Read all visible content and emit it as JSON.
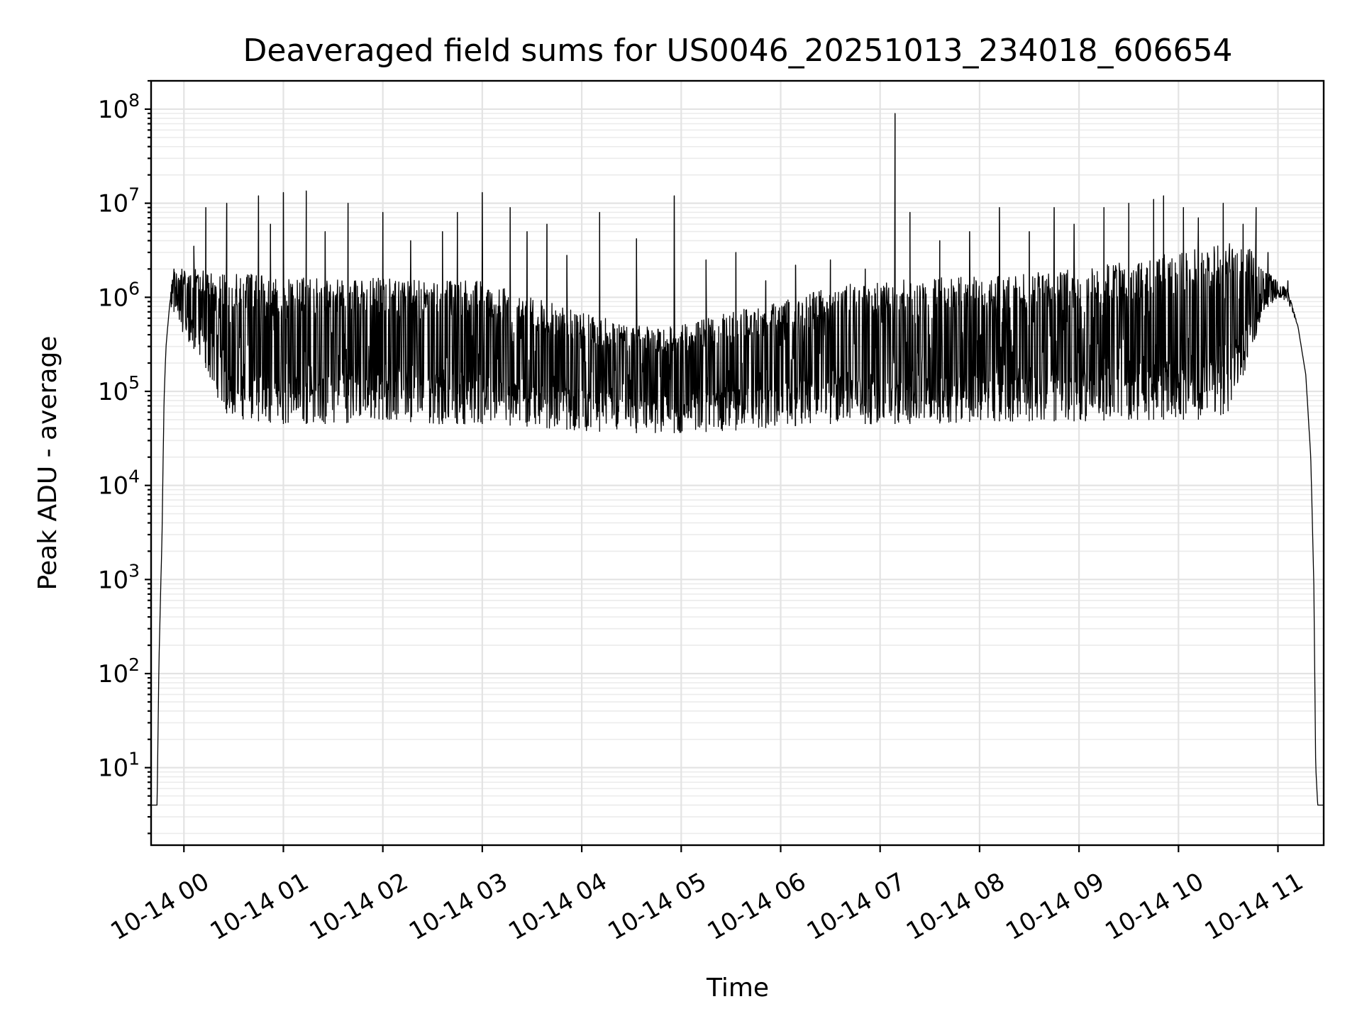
{
  "chart_data": {
    "type": "line",
    "title": "Deaveraged field sums for US0046_20251013_234018_606654",
    "xlabel": "Time",
    "ylabel": "Peak ADU - average",
    "yscale": "log",
    "ylim": [
      1.5,
      200000000
    ],
    "xlim_hours": [
      -0.33,
      11.46
    ],
    "grid": true,
    "x_ticks": [
      "10-14 00",
      "10-14 01",
      "10-14 02",
      "10-14 03",
      "10-14 04",
      "10-14 05",
      "10-14 06",
      "10-14 07",
      "10-14 08",
      "10-14 09",
      "10-14 10",
      "10-14 11"
    ],
    "y_ticks": [
      {
        "base": "10",
        "exp": "1"
      },
      {
        "base": "10",
        "exp": "2"
      },
      {
        "base": "10",
        "exp": "3"
      },
      {
        "base": "10",
        "exp": "4"
      },
      {
        "base": "10",
        "exp": "5"
      },
      {
        "base": "10",
        "exp": "6"
      },
      {
        "base": "10",
        "exp": "7"
      },
      {
        "base": "10",
        "exp": "8"
      }
    ],
    "series": [
      {
        "name": "field sums",
        "color": "#000000",
        "envelope": {
          "hours": [
            -0.33,
            -0.27,
            -0.25,
            -0.22,
            -0.2,
            -0.18,
            -0.15,
            -0.12,
            -0.1,
            0.0,
            0.2,
            0.4,
            0.6,
            1.0,
            1.5,
            2.0,
            2.5,
            3.0,
            3.5,
            4.0,
            4.5,
            5.0,
            5.5,
            6.0,
            6.5,
            7.0,
            7.5,
            8.0,
            8.5,
            9.0,
            9.5,
            10.0,
            10.3,
            10.5,
            10.7,
            10.85,
            11.0,
            11.1,
            11.2,
            11.28,
            11.33,
            11.36,
            11.38,
            11.4,
            11.46
          ],
          "baseline": [
            4,
            4,
            150,
            3000,
            80000,
            300000,
            700000,
            1000000,
            900000,
            700000,
            800000,
            200000,
            150000,
            200000,
            150000,
            200000,
            150000,
            100000,
            80000,
            50000,
            45000,
            45000,
            45000,
            50000,
            55000,
            60000,
            65000,
            70000,
            70000,
            75000,
            75000,
            80000,
            90000,
            120000,
            250000,
            700000,
            1000000,
            900000,
            500000,
            150000,
            20000,
            1000,
            10,
            4,
            4
          ],
          "burst_low": [
            4,
            4,
            150,
            3000,
            80000,
            300000,
            700000,
            800000,
            700000,
            400000,
            200000,
            60000,
            50000,
            45000,
            45000,
            50000,
            45000,
            45000,
            42000,
            38000,
            36000,
            36000,
            38000,
            42000,
            45000,
            45000,
            45000,
            48000,
            48000,
            48000,
            50000,
            50000,
            50000,
            60000,
            200000,
            700000,
            1000000,
            900000,
            500000,
            150000,
            20000,
            1000,
            10,
            4,
            4
          ],
          "burst_high": [
            4,
            4,
            150,
            3000,
            80000,
            300000,
            700000,
            1500000,
            2000000,
            2000000,
            2000000,
            1800000,
            1800000,
            1600000,
            1600000,
            1600000,
            1500000,
            1500000,
            1000000,
            700000,
            500000,
            500000,
            700000,
            900000,
            1300000,
            1500000,
            1600000,
            1700000,
            1800000,
            2000000,
            2500000,
            3000000,
            3500000,
            4000000,
            3500000,
            2000000,
            1500000,
            1200000,
            500000,
            150000,
            20000,
            1000,
            10,
            4,
            4
          ]
        },
        "spikes": [
          {
            "hour": -0.1,
            "value": 2000000
          },
          {
            "hour": 0.1,
            "value": 3500000
          },
          {
            "hour": 0.22,
            "value": 9000000
          },
          {
            "hour": 0.43,
            "value": 10000000
          },
          {
            "hour": 0.75,
            "value": 12000000
          },
          {
            "hour": 0.87,
            "value": 6000000
          },
          {
            "hour": 1.0,
            "value": 13000000
          },
          {
            "hour": 1.23,
            "value": 13500000
          },
          {
            "hour": 1.42,
            "value": 5000000
          },
          {
            "hour": 1.65,
            "value": 10000000
          },
          {
            "hour": 2.0,
            "value": 8000000
          },
          {
            "hour": 2.28,
            "value": 4000000
          },
          {
            "hour": 2.6,
            "value": 5000000
          },
          {
            "hour": 2.75,
            "value": 8000000
          },
          {
            "hour": 3.0,
            "value": 13000000
          },
          {
            "hour": 3.28,
            "value": 9000000
          },
          {
            "hour": 3.45,
            "value": 5000000
          },
          {
            "hour": 3.65,
            "value": 6000000
          },
          {
            "hour": 3.85,
            "value": 2800000
          },
          {
            "hour": 4.18,
            "value": 8000000
          },
          {
            "hour": 4.55,
            "value": 4200000
          },
          {
            "hour": 4.93,
            "value": 12000000
          },
          {
            "hour": 5.25,
            "value": 2500000
          },
          {
            "hour": 5.55,
            "value": 3000000
          },
          {
            "hour": 5.85,
            "value": 1500000
          },
          {
            "hour": 6.15,
            "value": 2200000
          },
          {
            "hour": 6.5,
            "value": 2500000
          },
          {
            "hour": 6.85,
            "value": 2000000
          },
          {
            "hour": 7.15,
            "value": 90000000
          },
          {
            "hour": 7.3,
            "value": 8000000
          },
          {
            "hour": 7.6,
            "value": 4000000
          },
          {
            "hour": 7.9,
            "value": 5000000
          },
          {
            "hour": 8.2,
            "value": 9000000
          },
          {
            "hour": 8.5,
            "value": 5000000
          },
          {
            "hour": 8.75,
            "value": 9000000
          },
          {
            "hour": 8.95,
            "value": 6000000
          },
          {
            "hour": 9.25,
            "value": 9000000
          },
          {
            "hour": 9.5,
            "value": 10000000
          },
          {
            "hour": 9.75,
            "value": 11000000
          },
          {
            "hour": 9.85,
            "value": 12000000
          },
          {
            "hour": 10.05,
            "value": 9000000
          },
          {
            "hour": 10.2,
            "value": 7000000
          },
          {
            "hour": 10.45,
            "value": 10000000
          },
          {
            "hour": 10.65,
            "value": 6000000
          },
          {
            "hour": 10.78,
            "value": 9000000
          },
          {
            "hour": 10.9,
            "value": 3000000
          },
          {
            "hour": 11.1,
            "value": 1500000
          }
        ]
      }
    ]
  }
}
